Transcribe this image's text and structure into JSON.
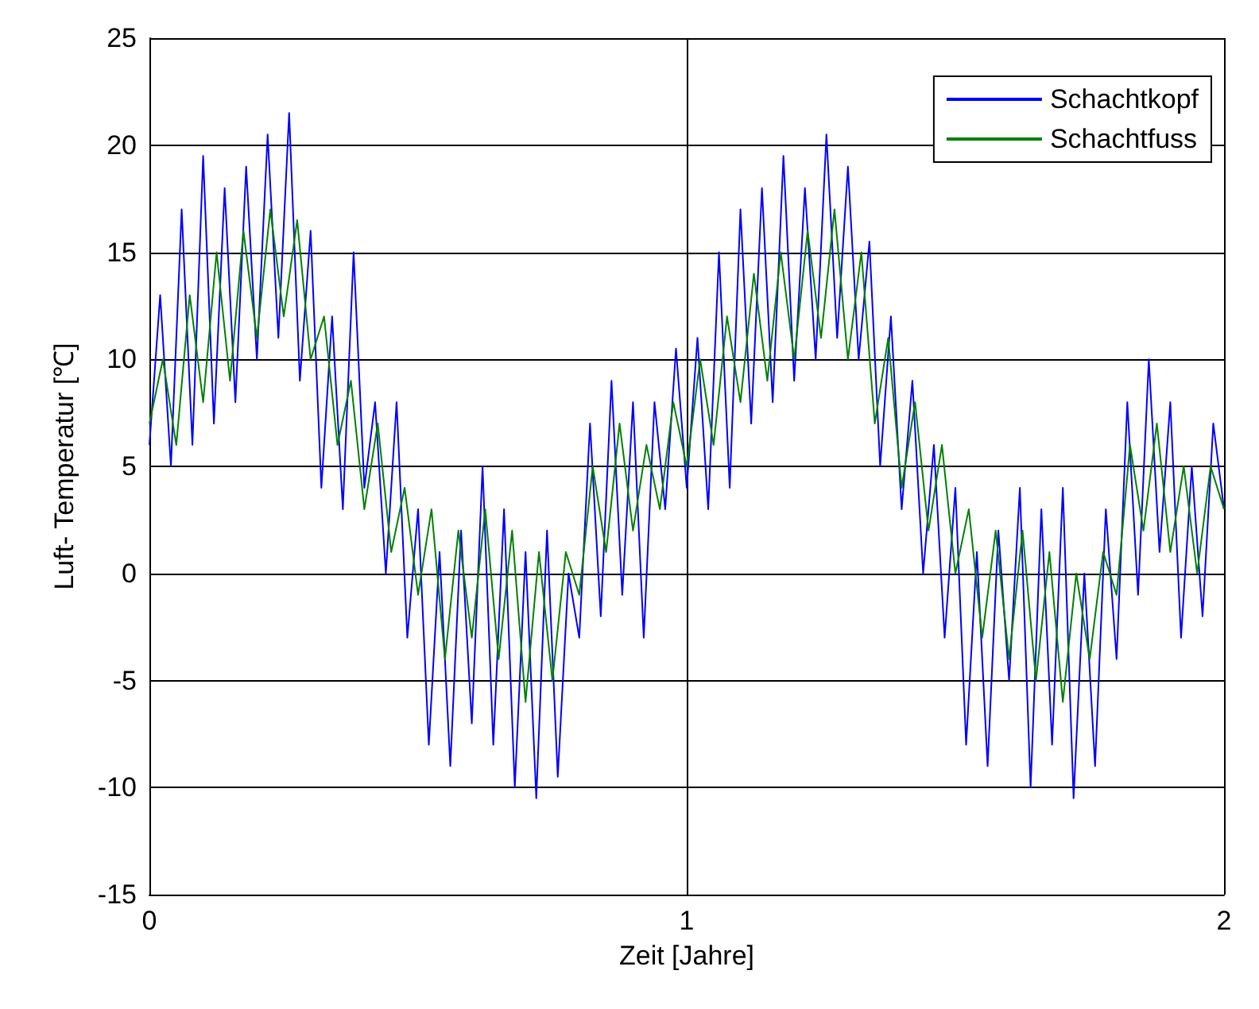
{
  "chart_data": {
    "type": "line",
    "xlabel": "Zeit [Jahre]",
    "ylabel": "Luft- Temperatur [℃]",
    "xlim": [
      0,
      2
    ],
    "xticks": [
      0,
      1,
      2
    ],
    "ylim": [
      -15,
      25
    ],
    "yticks": [
      -15,
      -10,
      -5,
      0,
      5,
      10,
      15,
      20,
      25
    ],
    "grid": true,
    "legend": "top right",
    "series": [
      {
        "name": "Schachtkopf",
        "color": "#0000ff",
        "x": [
          0,
          0.02,
          0.04,
          0.06,
          0.08,
          0.1,
          0.12,
          0.14,
          0.16,
          0.18,
          0.2,
          0.22,
          0.24,
          0.26,
          0.28,
          0.3,
          0.32,
          0.34,
          0.36,
          0.38,
          0.4,
          0.42,
          0.44,
          0.46,
          0.48,
          0.5,
          0.52,
          0.54,
          0.56,
          0.58,
          0.6,
          0.62,
          0.64,
          0.66,
          0.68,
          0.7,
          0.72,
          0.74,
          0.76,
          0.78,
          0.8,
          0.82,
          0.84,
          0.86,
          0.88,
          0.9,
          0.92,
          0.94,
          0.96,
          0.98,
          1,
          1.02,
          1.04,
          1.06,
          1.08,
          1.1,
          1.12,
          1.14,
          1.16,
          1.18,
          1.2,
          1.22,
          1.24,
          1.26,
          1.28,
          1.3,
          1.32,
          1.34,
          1.36,
          1.38,
          1.4,
          1.42,
          1.44,
          1.46,
          1.48,
          1.5,
          1.52,
          1.54,
          1.56,
          1.58,
          1.6,
          1.62,
          1.64,
          1.66,
          1.68,
          1.7,
          1.72,
          1.74,
          1.76,
          1.78,
          1.8,
          1.82,
          1.84,
          1.86,
          1.88,
          1.9,
          1.92,
          1.94,
          1.96,
          1.98,
          2
        ],
        "values": [
          6,
          13,
          5,
          17,
          6,
          19.5,
          7,
          18,
          8,
          19,
          10,
          20.5,
          11,
          21.5,
          9,
          16,
          4,
          12,
          3,
          15,
          4,
          8,
          0,
          8,
          -3,
          3,
          -8,
          1,
          -9,
          2,
          -7,
          5,
          -8,
          3,
          -10,
          1,
          -10.5,
          2,
          -9.5,
          0,
          -3,
          7,
          -2,
          9,
          -1,
          8,
          -3,
          8,
          3,
          10.5,
          4,
          11,
          3,
          15,
          4,
          17,
          7,
          18,
          8,
          19.5,
          9,
          18,
          10,
          20.5,
          11,
          19,
          10,
          15.5,
          5,
          12,
          3,
          9,
          0,
          6,
          -3,
          4,
          -8,
          1,
          -9,
          2,
          -5,
          4,
          -10,
          3,
          -8,
          4,
          -10.5,
          0,
          -9,
          3,
          -4,
          8,
          -1,
          10,
          1,
          8,
          -3,
          5,
          -2,
          7,
          3
        ]
      },
      {
        "name": "Schachtfuss",
        "color": "#008000",
        "x": [
          0,
          0.025,
          0.05,
          0.075,
          0.1,
          0.125,
          0.15,
          0.175,
          0.2,
          0.225,
          0.25,
          0.275,
          0.3,
          0.325,
          0.35,
          0.375,
          0.4,
          0.425,
          0.45,
          0.475,
          0.5,
          0.525,
          0.55,
          0.575,
          0.6,
          0.625,
          0.65,
          0.675,
          0.7,
          0.725,
          0.75,
          0.775,
          0.8,
          0.825,
          0.85,
          0.875,
          0.9,
          0.925,
          0.95,
          0.975,
          1,
          1.025,
          1.05,
          1.075,
          1.1,
          1.125,
          1.15,
          1.175,
          1.2,
          1.225,
          1.25,
          1.275,
          1.3,
          1.325,
          1.35,
          1.375,
          1.4,
          1.425,
          1.45,
          1.475,
          1.5,
          1.525,
          1.55,
          1.575,
          1.6,
          1.625,
          1.65,
          1.675,
          1.7,
          1.725,
          1.75,
          1.775,
          1.8,
          1.825,
          1.85,
          1.875,
          1.9,
          1.925,
          1.95,
          1.975,
          2
        ],
        "values": [
          7,
          10,
          6,
          13,
          8,
          15,
          9,
          16,
          11,
          17,
          12,
          16.5,
          10,
          12,
          6,
          9,
          3,
          7,
          1,
          4,
          -1,
          3,
          -4,
          2,
          -3,
          3,
          -4,
          2,
          -6,
          1,
          -5,
          1,
          -1,
          5,
          1,
          7,
          2,
          6,
          3,
          8,
          5,
          10,
          6,
          12,
          8,
          14,
          9,
          15,
          10,
          16,
          11,
          17,
          10,
          15,
          7,
          11,
          4,
          8,
          2,
          6,
          0,
          3,
          -3,
          2,
          -4,
          2,
          -5,
          1,
          -6,
          0,
          -4,
          1,
          -1,
          6,
          2,
          7,
          1,
          5,
          0,
          5,
          3
        ]
      }
    ]
  }
}
